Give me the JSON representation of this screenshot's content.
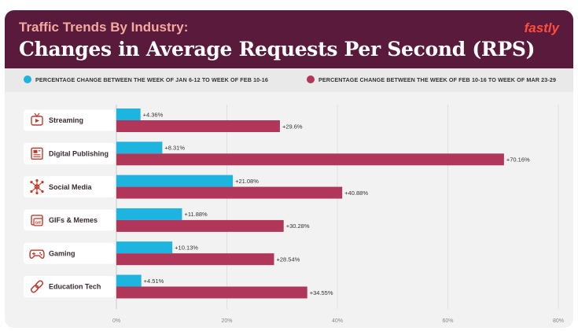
{
  "header": {
    "title_top": "Traffic Trends By Industry:",
    "title_main": "Changes in Average Requests Per Second (RPS)",
    "brand": "fastly"
  },
  "colors": {
    "header_bg": "#5a1a3c",
    "series_1": "#1eb4e0",
    "series_2": "#b0375a",
    "brand": "#ff4d3d"
  },
  "chart_data": {
    "type": "bar",
    "orientation": "horizontal",
    "title": "Changes in Average Requests Per Second (RPS)",
    "categories": [
      "Streaming",
      "Digital Publishing",
      "Social Media",
      "GIFs & Memes",
      "Gaming",
      "Education Tech"
    ],
    "category_icons": [
      "tv-play-icon",
      "newspaper-icon",
      "network-hub-icon",
      "gif-image-icon",
      "gamepad-icon",
      "link-icon"
    ],
    "series": [
      {
        "name": "PERCENTAGE CHANGE BETWEEN THE WEEK OF JAN 6-12 TO WEEK OF FEB 10-16",
        "values": [
          4.36,
          8.31,
          21.08,
          11.88,
          10.13,
          4.51
        ],
        "labels": [
          "+4.36%",
          "+8.31%",
          "+21.08%",
          "+11.88%",
          "+10.13%",
          "+4.51%"
        ]
      },
      {
        "name": "PERCENTAGE CHANGE BETWEEN THE WEEK OF FEB 10-16 TO WEEK OF MAR 23-29",
        "values": [
          29.6,
          70.16,
          40.88,
          30.28,
          28.54,
          34.55
        ],
        "labels": [
          "+29.6%",
          "+70.16%",
          "+40.88%",
          "+30.28%",
          "+28.54%",
          "+34.55%"
        ]
      }
    ],
    "xlim": [
      0,
      80
    ],
    "xticks": [
      0,
      20,
      40,
      60,
      80
    ],
    "xtick_labels": [
      "0%",
      "20%",
      "40%",
      "60%",
      "80%"
    ],
    "grid": true,
    "legend_position": "top"
  }
}
